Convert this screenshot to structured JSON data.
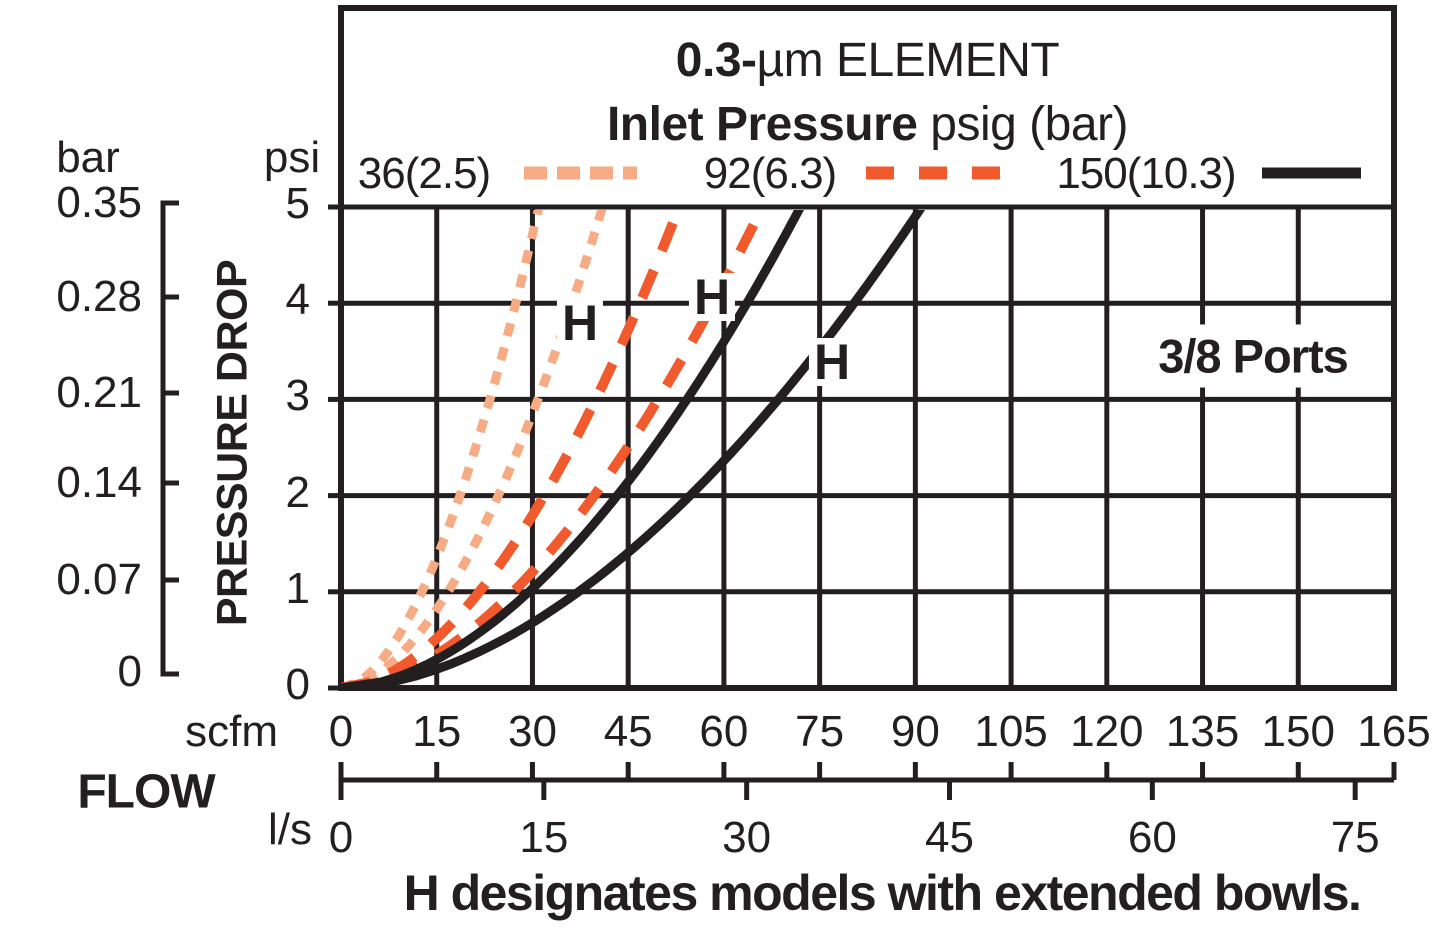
{
  "title": {
    "line1_bold": "0.3-",
    "line1_rest": "µm ELEMENT",
    "line2_bold": "Inlet Pressure",
    "line2_rest": " psig (bar)"
  },
  "legend": [
    {
      "label": "36(2.5)",
      "style": "dotted",
      "color": "#f6ab84"
    },
    {
      "label": "92(6.3)",
      "style": "dashed",
      "color": "#f15a2d"
    },
    {
      "label": "150(10.3)",
      "style": "solid",
      "color": "#231f20"
    }
  ],
  "y_axis": {
    "left_unit": "bar",
    "right_unit": "psi",
    "axis_title": "PRESSURE DROP",
    "bar_ticks": [
      "0.35",
      "0.28",
      "0.21",
      "0.14",
      "0.07",
      "0"
    ],
    "psi_ticks": [
      "5",
      "4",
      "3",
      "2",
      "1",
      "0"
    ]
  },
  "x_axis": {
    "title": "FLOW",
    "scfm_unit": "scfm",
    "ls_unit": "l/s",
    "scfm_ticks": [
      "0",
      "15",
      "30",
      "45",
      "60",
      "75",
      "90",
      "105",
      "120",
      "135",
      "150",
      "165"
    ],
    "ls_ticks": [
      "0",
      "15",
      "30",
      "45",
      "60",
      "75"
    ]
  },
  "annotations": {
    "ports_label": "3/8 Ports",
    "h_label": "H",
    "caption": "H designates models with extended bowls."
  },
  "chart_data": {
    "type": "line",
    "title": "0.3-µm ELEMENT — Inlet Pressure psig (bar)",
    "xlabel": "FLOW (scfm, l/s)",
    "ylabel": "PRESSURE DROP (psi, bar)",
    "x_range_scfm": [
      0,
      165
    ],
    "x_range_ls": [
      0,
      77.9
    ],
    "y_range_psi": [
      0,
      5
    ],
    "y_range_bar": [
      0,
      0.35
    ],
    "grid": true,
    "legend_position": "top",
    "exponent": 1.8,
    "series": [
      {
        "name": "36 psig (2.5 bar) standard",
        "pressure_psig": 36,
        "pressure_bar": 2.5,
        "line": "dotted",
        "color": "#f6ab84",
        "h_model": false,
        "scfm_at_5psi": 31,
        "points_scfm_psi": [
          [
            0,
            0
          ],
          [
            12.7,
            1
          ],
          [
            18.6,
            2
          ],
          [
            23.3,
            3
          ],
          [
            27.4,
            4
          ],
          [
            31,
            5
          ]
        ]
      },
      {
        "name": "36 psig (2.5 bar) H extended bowl",
        "pressure_psig": 36,
        "pressure_bar": 2.5,
        "line": "dotted",
        "color": "#f6ab84",
        "h_model": true,
        "scfm_at_5psi": 41,
        "points_scfm_psi": [
          [
            0,
            0
          ],
          [
            16.8,
            1
          ],
          [
            24.6,
            2
          ],
          [
            30.9,
            3
          ],
          [
            36.2,
            4
          ],
          [
            41,
            5
          ]
        ]
      },
      {
        "name": "92 psig (6.3 bar) standard",
        "pressure_psig": 92,
        "pressure_bar": 6.3,
        "line": "dashed",
        "color": "#f15a2d",
        "h_model": false,
        "scfm_at_5psi": 53,
        "points_scfm_psi": [
          [
            0,
            0
          ],
          [
            21.7,
            1
          ],
          [
            31.9,
            2
          ],
          [
            39.9,
            3
          ],
          [
            46.8,
            4
          ],
          [
            53,
            5
          ]
        ]
      },
      {
        "name": "92 psig (6.3 bar) H extended bowl",
        "pressure_psig": 92,
        "pressure_bar": 6.3,
        "line": "dashed",
        "color": "#f15a2d",
        "h_model": true,
        "scfm_at_5psi": 66,
        "points_scfm_psi": [
          [
            0,
            0
          ],
          [
            27.0,
            1
          ],
          [
            39.7,
            2
          ],
          [
            49.7,
            3
          ],
          [
            58.3,
            4
          ],
          [
            66,
            5
          ]
        ]
      },
      {
        "name": "150 psig (10.3 bar) standard",
        "pressure_psig": 150,
        "pressure_bar": 10.3,
        "line": "solid",
        "color": "#231f20",
        "h_model": false,
        "scfm_at_5psi": 72,
        "points_scfm_psi": [
          [
            0,
            0
          ],
          [
            29.5,
            1
          ],
          [
            43.3,
            2
          ],
          [
            54.2,
            3
          ],
          [
            63.6,
            4
          ],
          [
            72,
            5
          ]
        ]
      },
      {
        "name": "150 psig (10.3 bar) H extended bowl",
        "pressure_psig": 150,
        "pressure_bar": 10.3,
        "line": "solid",
        "color": "#231f20",
        "h_model": true,
        "scfm_at_5psi": 91,
        "points_scfm_psi": [
          [
            0,
            0
          ],
          [
            37.2,
            1
          ],
          [
            54.7,
            2
          ],
          [
            68.5,
            3
          ],
          [
            80.4,
            4
          ],
          [
            91,
            5
          ]
        ]
      }
    ]
  }
}
